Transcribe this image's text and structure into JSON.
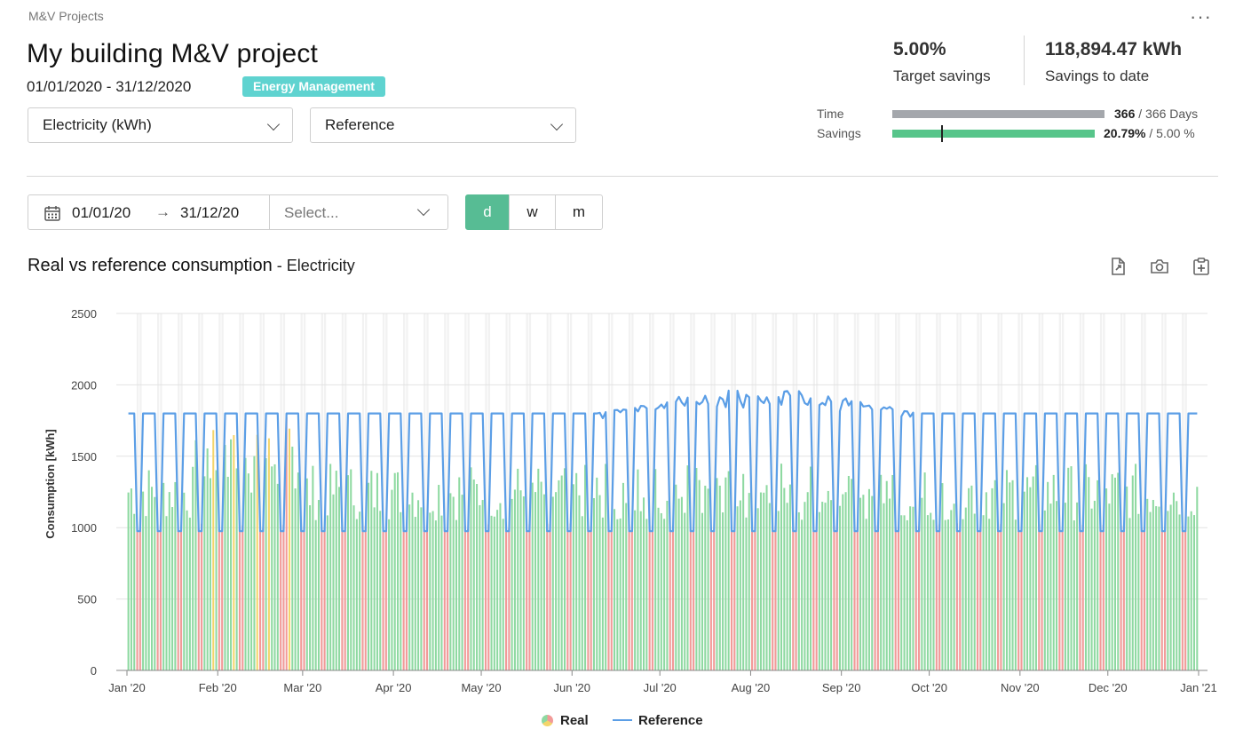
{
  "breadcrumb": "M&V Projects",
  "more_icon": "more-horizontal-icon",
  "project": {
    "title": "My building M&V project",
    "date_range": "01/01/2020 - 31/12/2020",
    "tag": "Energy Management"
  },
  "filters": {
    "energy": "Electricity (kWh)",
    "mode": "Reference"
  },
  "kpis": {
    "target_value": "5.00%",
    "target_label": "Target savings",
    "savings_value": "118,894.47 kWh",
    "savings_label": "Savings to date"
  },
  "progress": {
    "time_label": "Time",
    "time_bold": "366",
    "time_rest": " / 366 Days",
    "time_fraction": 1.0,
    "savings_label": "Savings",
    "savings_bold": "20.79%",
    "savings_rest": " / 5.00 %",
    "savings_fraction": 1.0,
    "target_marker_fraction": 0.24
  },
  "toolbar": {
    "date_from": "01/01/20",
    "date_arrow": "→",
    "date_to": "31/12/20",
    "select_placeholder": "Select...",
    "granularity": [
      "d",
      "w",
      "m"
    ],
    "granularity_active": "d"
  },
  "chart_header": {
    "title": "Real vs reference consumption",
    "separator": " - ",
    "subtitle": "Electricity",
    "icons": [
      "export-file-icon",
      "camera-icon",
      "clipboard-add-icon"
    ]
  },
  "colors": {
    "accent": "#57bc94",
    "badge": "#5fd3d0",
    "reference": "#5b9ee6",
    "real_good": "#8ed9a1",
    "real_warn": "#f4d56b",
    "real_bad": "#f29a98",
    "time_bar": "#a4a7ac",
    "savings_bar": "#57c58a"
  },
  "chart_data": {
    "type": "bar",
    "ylabel": "Consumption [kWh]",
    "ylim": [
      0,
      2500
    ],
    "yticks": [
      0,
      500,
      1000,
      1500,
      2000,
      2500
    ],
    "xlim": [
      "2020-01-01",
      "2021-01-01"
    ],
    "xticks": [
      "Jan '20",
      "Feb '20",
      "Mar '20",
      "Apr '20",
      "May '20",
      "Jun '20",
      "Jul '20",
      "Aug '20",
      "Sep '20",
      "Oct '20",
      "Nov '20",
      "Dec '20",
      "Jan '21"
    ],
    "weekend_shading": true,
    "series": [
      {
        "name": "Real",
        "kind": "bar",
        "weekday_typical": 1300,
        "weekend_typical": 1000
      },
      {
        "name": "Reference",
        "kind": "line",
        "weekday_value": 1800,
        "weekend_value": 975,
        "summer_peak_max": 1975
      }
    ],
    "legend": [
      "Real",
      "Reference"
    ],
    "legend_position": "bottom-center"
  }
}
